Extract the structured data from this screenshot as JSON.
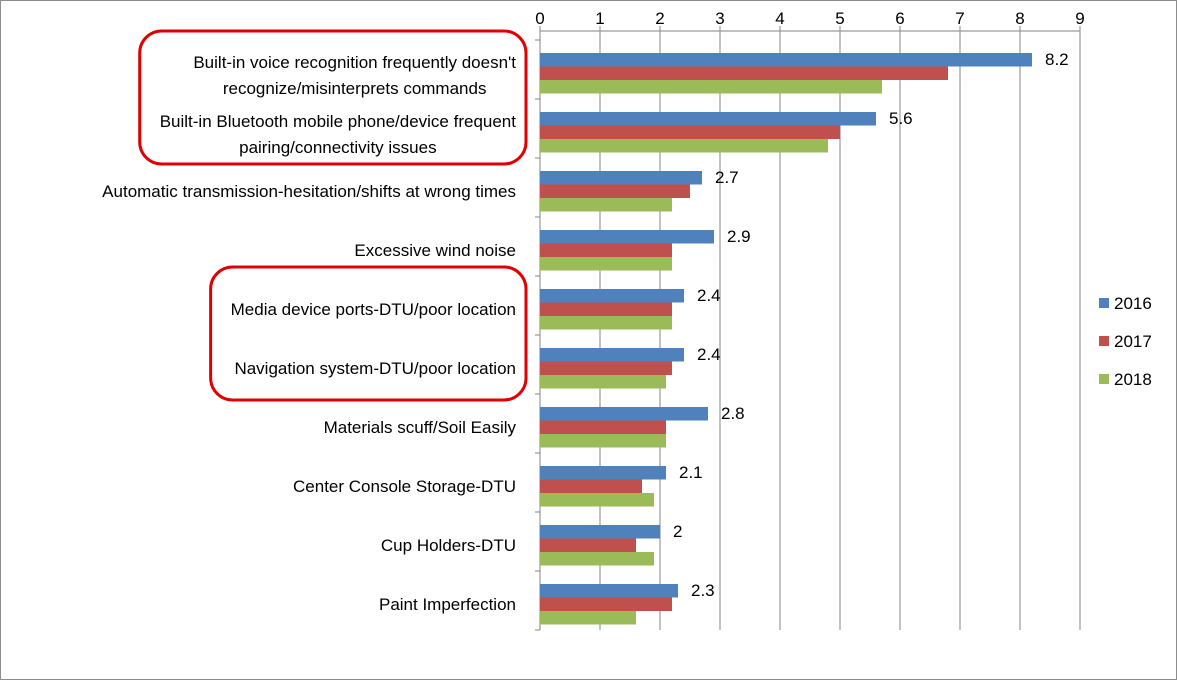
{
  "chart_data": {
    "type": "bar",
    "orientation": "horizontal",
    "title": "",
    "xlabel": "",
    "ylabel": "",
    "xlim": [
      0,
      9
    ],
    "ticks": [
      "0",
      "1",
      "2",
      "3",
      "4",
      "5",
      "6",
      "7",
      "8",
      "9"
    ],
    "grid": true,
    "legend_position": "right",
    "categories": [
      [
        "Built-in voice recognition frequently doesn't",
        "recognize/misinterprets commands"
      ],
      [
        "Built-in Bluetooth mobile phone/device frequent",
        "pairing/connectivity issues"
      ],
      [
        "Automatic transmission-hesitation/shifts at wrong times"
      ],
      [
        "Excessive wind noise"
      ],
      [
        "Media device ports-DTU/poor location"
      ],
      [
        "Navigation system-DTU/poor location"
      ],
      [
        "Materials scuff/Soil Easily"
      ],
      [
        "Center Console Storage-DTU"
      ],
      [
        "Cup Holders-DTU"
      ],
      [
        "Paint Imperfection"
      ]
    ],
    "series": [
      {
        "name": "2016",
        "color": "#4f81bd",
        "values": [
          8.2,
          5.6,
          2.7,
          2.9,
          2.4,
          2.4,
          2.8,
          2.1,
          2.0,
          2.3
        ],
        "labels": [
          "8.2",
          "5.6",
          "2.7",
          "2.9",
          "2.4",
          "2.4",
          "2.8",
          "2.1",
          "2",
          "2.3"
        ]
      },
      {
        "name": "2017",
        "color": "#c0504d",
        "values": [
          6.8,
          5.0,
          2.5,
          2.2,
          2.2,
          2.2,
          2.1,
          1.7,
          1.6,
          2.2
        ]
      },
      {
        "name": "2018",
        "color": "#9bbb59",
        "values": [
          5.7,
          4.8,
          2.2,
          2.2,
          2.2,
          2.1,
          2.1,
          1.9,
          1.9,
          1.6
        ]
      }
    ],
    "highlight_groups": [
      [
        0,
        1
      ],
      [
        4,
        5
      ]
    ],
    "highlight_color": "#e00000"
  }
}
